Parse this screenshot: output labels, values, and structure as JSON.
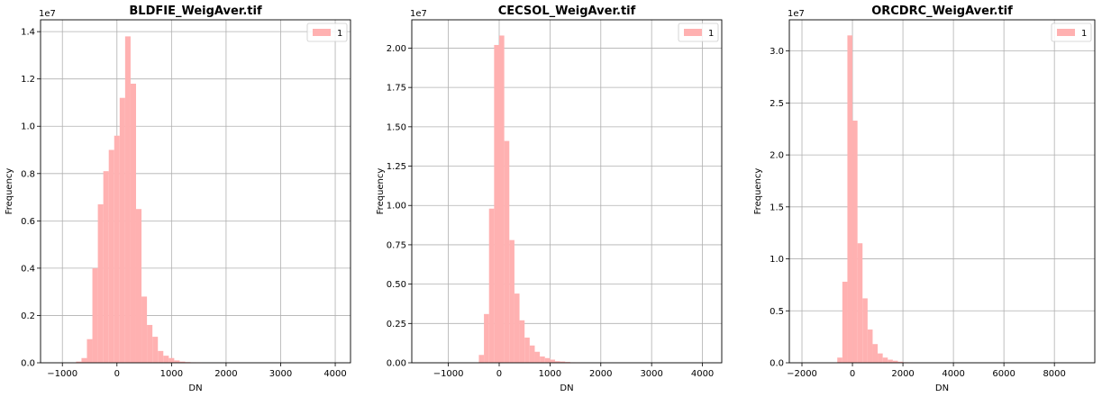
{
  "figure": {
    "bar_color": "#ffb1b1",
    "grid_color": "#b0b0b0"
  },
  "chart_data": [
    {
      "type": "bar",
      "title": "BLDFIE_WeigAver.tif",
      "xlabel": "DN",
      "ylabel": "Frequency",
      "y_exponent_label": "1e7",
      "legend": [
        "1"
      ],
      "legend_position": "top-right",
      "grid": true,
      "xlim": [
        -1400,
        4280
      ],
      "ylim": [
        0,
        1.45
      ],
      "xticks": [
        -1000,
        0,
        1000,
        2000,
        3000,
        4000
      ],
      "yticks": [
        0.0,
        0.2,
        0.4,
        0.6,
        0.8,
        1.0,
        1.2,
        1.4
      ],
      "bin_start": -1150,
      "bin_width": 100,
      "values": [
        0,
        0,
        0,
        0,
        0.005,
        0.02,
        0.1,
        0.4,
        0.67,
        0.81,
        0.9,
        0.96,
        1.12,
        1.38,
        1.18,
        0.65,
        0.28,
        0.16,
        0.11,
        0.05,
        0.03,
        0.02,
        0.01,
        0.005,
        0.003,
        0.002,
        0.001
      ]
    },
    {
      "type": "bar",
      "title": "CECSOL_WeigAver.tif",
      "xlabel": "DN",
      "ylabel": "Frequency",
      "y_exponent_label": "1e7",
      "legend": [
        "1"
      ],
      "legend_position": "top-right",
      "grid": true,
      "xlim": [
        -1720,
        4380
      ],
      "ylim": [
        0,
        2.18
      ],
      "xticks": [
        -1000,
        0,
        1000,
        2000,
        3000,
        4000
      ],
      "yticks": [
        0.0,
        0.25,
        0.5,
        0.75,
        1.0,
        1.25,
        1.5,
        1.75,
        2.0
      ],
      "bin_start": -400,
      "bin_width": 100,
      "values": [
        0.05,
        0.31,
        0.98,
        2.02,
        2.08,
        1.41,
        0.78,
        0.44,
        0.27,
        0.16,
        0.11,
        0.07,
        0.04,
        0.03,
        0.02,
        0.01,
        0.008,
        0.005,
        0.003,
        0.002
      ]
    },
    {
      "type": "bar",
      "title": "ORCDRC_WeigAver.tif",
      "xlabel": "DN",
      "ylabel": "Frequency",
      "y_exponent_label": "1e7",
      "legend": [
        "1"
      ],
      "legend_position": "top-right",
      "grid": true,
      "xlim": [
        -2500,
        9600
      ],
      "ylim": [
        0,
        3.3
      ],
      "xticks": [
        -2000,
        0,
        2000,
        4000,
        6000,
        8000
      ],
      "yticks": [
        0.0,
        0.5,
        1.0,
        1.5,
        2.0,
        2.5,
        3.0
      ],
      "bin_start": -600,
      "bin_width": 200,
      "values": [
        0.05,
        0.78,
        3.15,
        2.33,
        1.15,
        0.62,
        0.32,
        0.18,
        0.09,
        0.05,
        0.03,
        0.02,
        0.01,
        0.005,
        0.002
      ]
    }
  ]
}
